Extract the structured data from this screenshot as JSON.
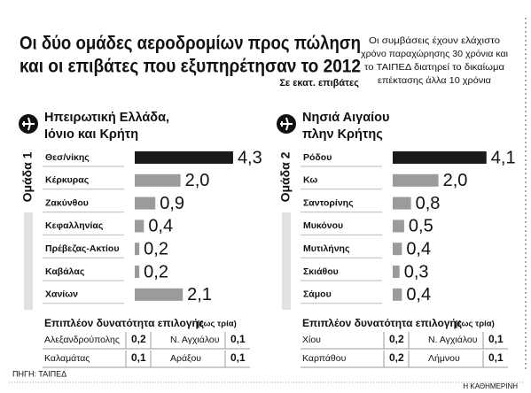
{
  "title": [
    "Οι δύο ομάδες αεροδρομίων προς πώληση",
    "και οι επιβάτες που εξυπηρέτησαν το 2012"
  ],
  "subtitle": "Σε εκατ. επιβάτες",
  "note": [
    "Οι συμβάσεις έχουν ελάχιστο",
    "χρόνο παραχώρησης 30 χρόνια και",
    "το ΤΑΙΠΕΔ διατηρεί το δικαίωμα",
    "επέκτασης άλλα 10 χρόνια"
  ],
  "source": "ΠΗΓΗ: ΤΑΙΠΕΔ",
  "credit": "Η ΚΑΘΗΜΕΡΙΝΗ",
  "chart_data": [
    {
      "type": "bar",
      "group": "Ομάδα 1",
      "title": [
        "Ηπειρωτική Ελλάδα,",
        "Ιόνιο και Κρήτη"
      ],
      "categories": [
        "Θεσ/νίκης",
        "Κέρκυρας",
        "Ζακύνθου",
        "Κεφαλληνίας",
        "Πρέβεζας-Ακτίου",
        "Καβάλας",
        "Χανίων"
      ],
      "values": [
        4.3,
        2.0,
        0.9,
        0.4,
        0.2,
        0.2,
        2.1
      ],
      "value_labels": [
        "4,3",
        "2,0",
        "0,9",
        "0,4",
        "0,2",
        "0,2",
        "2,1"
      ],
      "colors": [
        "#1a1a1a",
        "#9b9b9b",
        "#9b9b9b",
        "#9b9b9b",
        "#9b9b9b",
        "#9b9b9b",
        "#9b9b9b"
      ],
      "options": {
        "title": "Επιπλέον δυνατότητα επιλογής",
        "qualifier": "(έως τρία)",
        "rows": [
          [
            "Αλεξανδρούπολης",
            "0,2",
            "Ν. Αγχιάλου",
            "0,1"
          ],
          [
            "Καλαμάτας",
            "0,1",
            "Αράξου",
            "0,1"
          ]
        ]
      }
    },
    {
      "type": "bar",
      "group": "Ομάδα 2",
      "title": [
        "Νησιά Αιγαίου",
        "πλην Κρήτης"
      ],
      "categories": [
        "Ρόδου",
        "Κω",
        "Σαντορίνης",
        "Μυκόνου",
        "Μυτιλήνης",
        "Σκιάθου",
        "Σάμου"
      ],
      "values": [
        4.1,
        2.0,
        0.8,
        0.5,
        0.4,
        0.3,
        0.4
      ],
      "value_labels": [
        "4,1",
        "2,0",
        "0,8",
        "0,5",
        "0,4",
        "0,3",
        "0,4"
      ],
      "colors": [
        "#1a1a1a",
        "#9b9b9b",
        "#9b9b9b",
        "#9b9b9b",
        "#9b9b9b",
        "#9b9b9b",
        "#9b9b9b"
      ],
      "options": {
        "title": "Επιπλέον δυνατότητα επιλογής",
        "qualifier": "(έως τρία)",
        "rows": [
          [
            "Χίου",
            "0,2",
            "Ν. Αγχιάλου",
            "0,1"
          ],
          [
            "Καρπάθου",
            "0,2",
            "Λήμνου",
            "0,1"
          ]
        ]
      }
    }
  ]
}
